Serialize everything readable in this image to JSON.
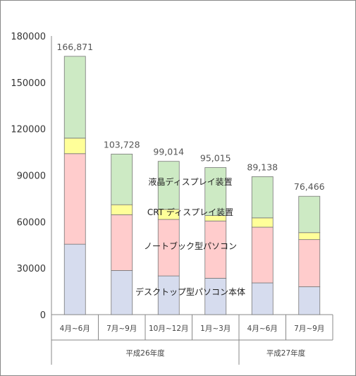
{
  "chart_data": {
    "type": "bar",
    "stacked": true,
    "categories": [
      "4月~6月",
      "7月~9月",
      "10月~12月",
      "1月~3月",
      "4月~6月",
      "7月~9月"
    ],
    "groups": [
      {
        "label": "平成26年度",
        "categories": [
          0,
          1,
          2,
          3
        ]
      },
      {
        "label": "平成27年度",
        "categories": [
          4,
          5
        ]
      }
    ],
    "series": [
      {
        "name": "デスクトップ型パソコン本体",
        "color": "#d6dcee",
        "values": [
          45500,
          28500,
          25000,
          23500,
          20500,
          18000
        ]
      },
      {
        "name": "ノートブック型パソコン",
        "color": "#ffcccc",
        "values": [
          58500,
          36000,
          36500,
          37000,
          36000,
          30466
        ]
      },
      {
        "name": "CRT ディスプレイ装置",
        "color": "#ffff99",
        "values": [
          10000,
          6500,
          6500,
          3500,
          6000,
          4500
        ]
      },
      {
        "name": "液晶ディスプレイ装置",
        "color": "#cdeac4",
        "values": [
          52871,
          32728,
          31014,
          31015,
          26638,
          23500
        ]
      }
    ],
    "totals": [
      "166,871",
      "103,728",
      "99,014",
      "95,015",
      "89,138",
      "76,466"
    ],
    "highlight_index": 5,
    "highlight_color": "#ff0000",
    "y_ticks": [
      "0",
      "30000",
      "60000",
      "90000",
      "120000",
      "150000",
      "180000"
    ],
    "ylim": [
      0,
      180000
    ],
    "grid": false,
    "legend": "inline labels over bars"
  }
}
